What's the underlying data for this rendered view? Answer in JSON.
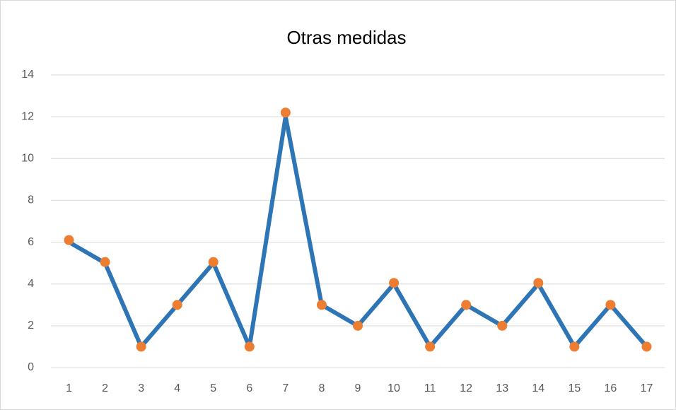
{
  "chart_data": {
    "type": "line",
    "title": "Otras medidas",
    "categories": [
      "1",
      "2",
      "3",
      "4",
      "5",
      "6",
      "7",
      "8",
      "9",
      "10",
      "11",
      "12",
      "13",
      "14",
      "15",
      "16",
      "17"
    ],
    "series": [
      {
        "color": "#2e75b6",
        "values": [
          6,
          5,
          1,
          3,
          5,
          1,
          12,
          3,
          2,
          4,
          1,
          3,
          2,
          4,
          1,
          3,
          1
        ]
      },
      {
        "color": "#ed7d31",
        "marker_only": true,
        "values": [
          6.1,
          5.05,
          1,
          3,
          5.05,
          1,
          12.2,
          3,
          2,
          4.05,
          1,
          3,
          2,
          4.05,
          1,
          3,
          1
        ]
      }
    ],
    "ylim": [
      0,
      14
    ],
    "yticks": [
      0,
      2,
      4,
      6,
      8,
      10,
      12,
      14
    ],
    "grid": true
  }
}
